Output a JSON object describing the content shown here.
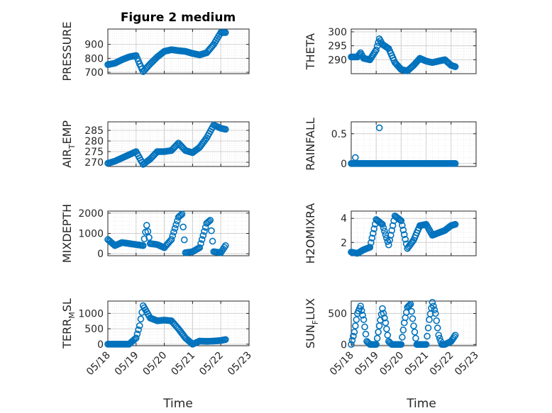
{
  "figure": {
    "title": "Figure 2 medium",
    "xlabel": "Time",
    "date_ticks": [
      "05/18",
      "05/19",
      "05/20",
      "05/21",
      "05/22",
      "05/23"
    ]
  },
  "colors": {
    "marker": "#0072bd",
    "axis": "#262626",
    "grid": "#dcdcdc"
  },
  "chart_data": [
    {
      "type": "scatter",
      "id": "pressure",
      "title": "Figure 2 medium",
      "ylabel": "PRESSURE",
      "xlim": [
        "2018-05-18",
        "2018-05-23"
      ],
      "ylim": [
        690,
        1010
      ],
      "yticks": [
        700,
        800,
        900
      ],
      "x_ticks_labeled": false,
      "grid": "major+minor",
      "marker": "circle-open",
      "x": [
        "2018-05-18T00:00",
        "2018-05-18T06:00",
        "2018-05-18T12:00",
        "2018-05-18T18:00",
        "2018-05-19T00:00",
        "2018-05-19T03:00",
        "2018-05-19T06:00",
        "2018-05-19T12:00",
        "2018-05-19T18:00",
        "2018-05-20T00:00",
        "2018-05-20T06:00",
        "2018-05-20T12:00",
        "2018-05-20T18:00",
        "2018-05-21T00:00",
        "2018-05-21T06:00",
        "2018-05-21T12:00",
        "2018-05-21T18:00",
        "2018-05-22T00:00",
        "2018-05-22T04:00"
      ],
      "y": [
        755,
        765,
        790,
        810,
        820,
        760,
        705,
        760,
        810,
        850,
        862,
        855,
        850,
        835,
        825,
        840,
        900,
        985,
        985
      ]
    },
    {
      "type": "scatter",
      "id": "theta",
      "ylabel": "THETA",
      "xlim": [
        "2018-05-18",
        "2018-05-23"
      ],
      "ylim": [
        285,
        301
      ],
      "yticks": [
        290,
        295,
        300
      ],
      "x_ticks_labeled": false,
      "grid": "major+minor",
      "marker": "circle-open",
      "x": [
        "2018-05-18T00:00",
        "2018-05-18T06:00",
        "2018-05-18T09:00",
        "2018-05-18T12:00",
        "2018-05-18T18:00",
        "2018-05-19T00:00",
        "2018-05-19T03:00",
        "2018-05-19T06:00",
        "2018-05-19T12:00",
        "2018-05-19T18:00",
        "2018-05-20T00:00",
        "2018-05-20T06:00",
        "2018-05-20T12:00",
        "2018-05-20T18:00",
        "2018-05-21T00:00",
        "2018-05-21T06:00",
        "2018-05-21T12:00",
        "2018-05-21T18:00",
        "2018-05-22T00:00",
        "2018-05-22T04:00"
      ],
      "y": [
        291,
        291,
        292.5,
        290.5,
        290,
        293.5,
        297.5,
        295.5,
        294,
        289,
        286.5,
        286,
        288,
        290.5,
        289.5,
        289,
        289.5,
        290,
        288,
        287.5
      ]
    },
    {
      "type": "scatter",
      "id": "air_temp",
      "ylabel": "AIR_TEMP",
      "ylabel_parts": [
        "AIR",
        "T",
        "EMP"
      ],
      "xlim": [
        "2018-05-18",
        "2018-05-23"
      ],
      "ylim": [
        268,
        289
      ],
      "yticks": [
        270,
        275,
        280,
        285
      ],
      "x_ticks_labeled": false,
      "grid": "major+minor",
      "marker": "circle-open",
      "x": [
        "2018-05-18T00:00",
        "2018-05-18T06:00",
        "2018-05-18T12:00",
        "2018-05-18T18:00",
        "2018-05-19T00:00",
        "2018-05-19T06:00",
        "2018-05-19T12:00",
        "2018-05-19T18:00",
        "2018-05-20T00:00",
        "2018-05-20T06:00",
        "2018-05-20T12:00",
        "2018-05-20T18:00",
        "2018-05-21T00:00",
        "2018-05-21T06:00",
        "2018-05-21T12:00",
        "2018-05-21T18:00",
        "2018-05-22T00:00",
        "2018-05-22T04:00"
      ],
      "y": [
        269.5,
        270.5,
        272,
        273.5,
        275,
        269,
        271.5,
        275,
        275,
        275.5,
        279,
        275.5,
        274.5,
        277,
        281.5,
        287.5,
        286,
        285.5
      ]
    },
    {
      "type": "scatter",
      "id": "rainfall",
      "ylabel": "RAINFALL",
      "xlim": [
        "2018-05-18",
        "2018-05-23"
      ],
      "ylim": [
        -0.05,
        0.7
      ],
      "yticks": [
        0,
        0.5
      ],
      "x_ticks_labeled": false,
      "grid": "major+minor",
      "marker": "circle-open",
      "x": [
        "2018-05-18T00:00",
        "2018-05-18T06:00",
        "2018-05-18T12:00",
        "2018-05-18T18:00",
        "2018-05-19T00:00",
        "2018-05-19T06:00",
        "2018-05-19T12:00",
        "2018-05-19T18:00",
        "2018-05-20T00:00",
        "2018-05-20T06:00",
        "2018-05-20T12:00",
        "2018-05-20T18:00",
        "2018-05-21T00:00",
        "2018-05-21T06:00",
        "2018-05-21T12:00",
        "2018-05-21T18:00",
        "2018-05-22T00:00",
        "2018-05-22T04:00",
        "2018-05-18T04:00",
        "2018-05-19T03:00"
      ],
      "y": [
        0,
        0,
        0,
        0,
        0,
        0,
        0,
        0,
        0,
        0,
        0,
        0,
        0,
        0,
        0,
        0,
        0,
        0,
        0.1,
        0.6
      ]
    },
    {
      "type": "scatter",
      "id": "mixdepth",
      "ylabel": "MIXDEPTH",
      "xlim": [
        "2018-05-18",
        "2018-05-23"
      ],
      "ylim": [
        -100,
        2100
      ],
      "yticks": [
        0,
        1000,
        2000
      ],
      "x_ticks_labeled": false,
      "grid": "major+minor",
      "marker": "circle-open",
      "x": [
        "2018-05-18T00:00",
        "2018-05-18T06:00",
        "2018-05-18T12:00",
        "2018-05-18T18:00",
        "2018-05-19T00:00",
        "2018-05-19T06:00",
        "2018-05-19T09:00",
        "2018-05-19T12:00",
        "2018-05-19T18:00",
        "2018-05-20T00:00",
        "2018-05-20T06:00",
        "2018-05-20T12:00",
        "2018-05-20T15:00",
        "2018-05-20T18:00",
        "2018-05-21T00:00",
        "2018-05-21T06:00",
        "2018-05-21T12:00",
        "2018-05-21T15:00",
        "2018-05-21T18:00",
        "2018-05-22T00:00",
        "2018-05-22T04:00"
      ],
      "y": [
        700,
        400,
        550,
        500,
        450,
        400,
        1400,
        500,
        450,
        300,
        700,
        1800,
        1950,
        50,
        100,
        300,
        1500,
        1650,
        100,
        50,
        400
      ]
    },
    {
      "type": "scatter",
      "id": "h2omixra",
      "ylabel": "H2OMIXRA",
      "xlim": [
        "2018-05-18",
        "2018-05-23"
      ],
      "ylim": [
        0.9,
        4.6
      ],
      "yticks": [
        2,
        4
      ],
      "x_ticks_labeled": false,
      "grid": "major+minor",
      "marker": "circle-open",
      "x": [
        "2018-05-18T00:00",
        "2018-05-18T06:00",
        "2018-05-18T12:00",
        "2018-05-18T18:00",
        "2018-05-19T00:00",
        "2018-05-19T06:00",
        "2018-05-19T12:00",
        "2018-05-19T18:00",
        "2018-05-20T00:00",
        "2018-05-20T06:00",
        "2018-05-20T12:00",
        "2018-05-20T18:00",
        "2018-05-21T00:00",
        "2018-05-21T06:00",
        "2018-05-21T12:00",
        "2018-05-21T18:00",
        "2018-05-22T00:00",
        "2018-05-22T04:00"
      ],
      "y": [
        1.2,
        1.1,
        1.4,
        1.6,
        3.9,
        3.5,
        1.8,
        4.2,
        3.8,
        1.5,
        2.2,
        3.4,
        3.5,
        2.6,
        2.8,
        3.0,
        3.4,
        3.5
      ]
    },
    {
      "type": "scatter",
      "id": "terr_msl",
      "ylabel": "TERR_MSL",
      "ylabel_parts": [
        "TERR",
        "M",
        "SL"
      ],
      "xlim": [
        "2018-05-18",
        "2018-05-23"
      ],
      "ylim": [
        -50,
        1400
      ],
      "yticks": [
        0,
        500,
        1000
      ],
      "x_ticks_labeled": true,
      "grid": "major+minor",
      "marker": "circle-open",
      "x": [
        "2018-05-18T00:00",
        "2018-05-18T06:00",
        "2018-05-18T12:00",
        "2018-05-18T18:00",
        "2018-05-19T00:00",
        "2018-05-19T03:00",
        "2018-05-19T06:00",
        "2018-05-19T12:00",
        "2018-05-19T18:00",
        "2018-05-20T00:00",
        "2018-05-20T06:00",
        "2018-05-20T12:00",
        "2018-05-20T18:00",
        "2018-05-21T00:00",
        "2018-05-21T06:00",
        "2018-05-21T12:00",
        "2018-05-21T18:00",
        "2018-05-22T00:00",
        "2018-05-22T04:00"
      ],
      "y": [
        0,
        0,
        0,
        0,
        200,
        600,
        1250,
        850,
        760,
        780,
        760,
        500,
        200,
        0,
        100,
        90,
        100,
        120,
        150
      ]
    },
    {
      "type": "scatter",
      "id": "sun_flux",
      "ylabel": "SUN_FLUX",
      "ylabel_parts": [
        "SUN",
        "F",
        "LUX"
      ],
      "xlim": [
        "2018-05-18",
        "2018-05-23"
      ],
      "ylim": [
        -20,
        700
      ],
      "yticks": [
        0,
        500
      ],
      "x_ticks_labeled": true,
      "grid": "major+minor",
      "marker": "circle-open",
      "x": [
        "2018-05-18T00:00",
        "2018-05-18T03:00",
        "2018-05-18T06:00",
        "2018-05-18T09:00",
        "2018-05-18T12:00",
        "2018-05-18T15:00",
        "2018-05-18T18:00",
        "2018-05-19T00:00",
        "2018-05-19T03:00",
        "2018-05-19T06:00",
        "2018-05-19T09:00",
        "2018-05-19T12:00",
        "2018-05-19T15:00",
        "2018-05-19T18:00",
        "2018-05-20T00:00",
        "2018-05-20T03:00",
        "2018-05-20T06:00",
        "2018-05-20T09:00",
        "2018-05-20T12:00",
        "2018-05-20T15:00",
        "2018-05-20T18:00",
        "2018-05-21T00:00",
        "2018-05-21T03:00",
        "2018-05-21T06:00",
        "2018-05-21T09:00",
        "2018-05-21T12:00",
        "2018-05-21T15:00",
        "2018-05-21T18:00",
        "2018-05-22T00:00",
        "2018-05-22T04:00"
      ],
      "y": [
        0,
        200,
        500,
        620,
        400,
        50,
        0,
        0,
        300,
        580,
        350,
        50,
        0,
        0,
        0,
        350,
        600,
        650,
        300,
        0,
        0,
        0,
        400,
        680,
        500,
        150,
        0,
        0,
        50,
        150
      ]
    }
  ]
}
